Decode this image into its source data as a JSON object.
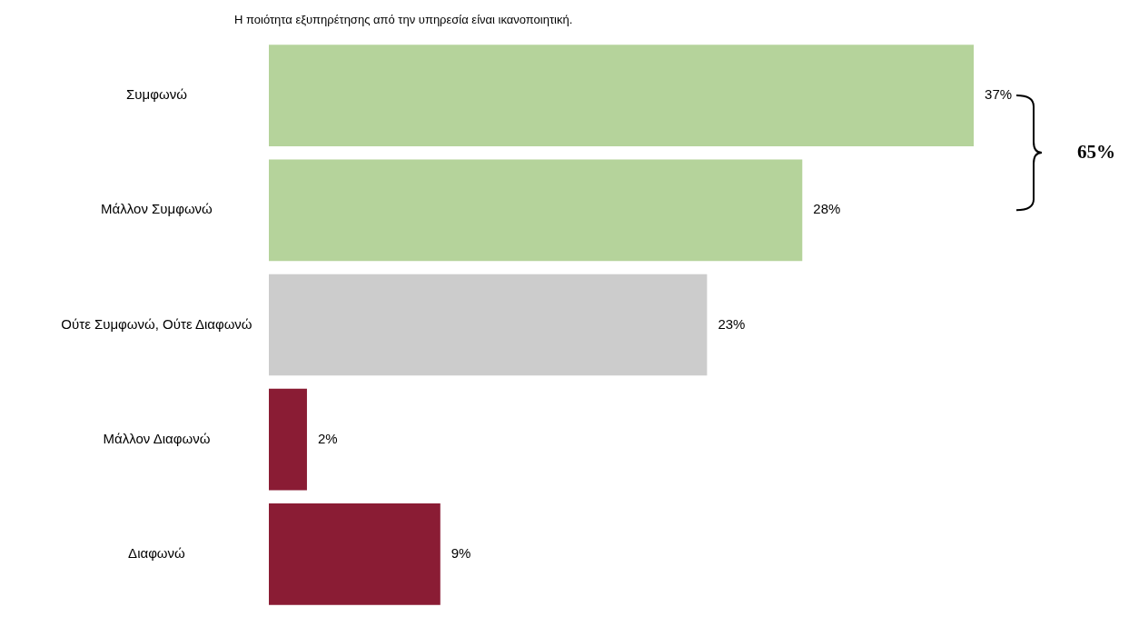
{
  "chart_data": {
    "type": "bar",
    "orientation": "horizontal",
    "title": "Η ποιότητα εξυπηρέτησης από την υπηρεσία είναι ικανοποιητική.",
    "categories": [
      "Συμφωνώ",
      "Μάλλον Συμφωνώ",
      "Ούτε Συμφωνώ, Ούτε Διαφωνώ",
      "Μάλλον Διαφωνώ",
      "Διαφωνώ"
    ],
    "values": [
      37,
      28,
      23,
      2,
      9
    ],
    "colors": [
      "#b5d39b",
      "#b5d39b",
      "#cccccc",
      "#8a1c34",
      "#8a1c34"
    ],
    "value_labels": [
      "37%",
      "28%",
      "23%",
      "2%",
      "9%"
    ],
    "annotations": [
      "65%"
    ],
    "legend": false
  }
}
